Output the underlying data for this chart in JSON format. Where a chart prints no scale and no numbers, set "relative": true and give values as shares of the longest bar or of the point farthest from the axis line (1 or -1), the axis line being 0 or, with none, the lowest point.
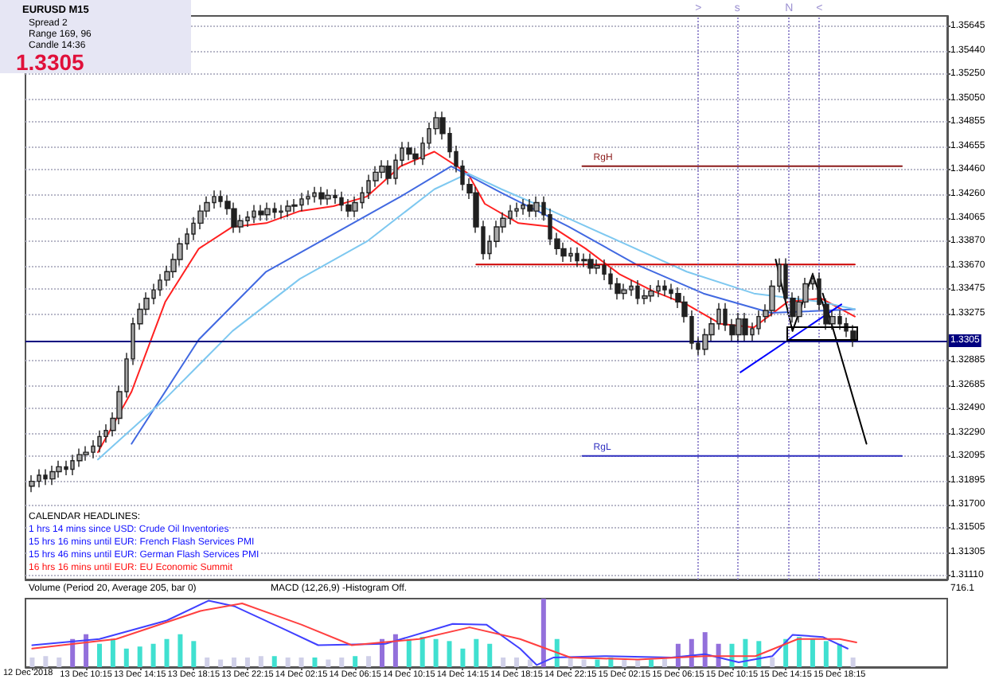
{
  "chart_data": [
    {
      "type": "candlestick",
      "x": [
        "2018-12-13T06:15",
        "2018-12-13T06:45",
        "2018-12-13T07:15",
        "2018-12-13T07:45",
        "2018-12-13T08:15",
        "2018-12-13T08:45",
        "2018-12-13T09:15",
        "2018-12-13T09:45",
        "2018-12-13T10:15",
        "2018-12-13T10:45",
        "2018-12-13T11:15",
        "2018-12-13T11:45",
        "2018-12-13T12:15",
        "2018-12-13T12:45",
        "2018-12-13T13:15",
        "2018-12-13T13:45",
        "2018-12-13T14:15",
        "2018-12-13T14:45",
        "2018-12-13T15:15",
        "2018-12-13T15:45",
        "2018-12-13T16:15",
        "2018-12-13T16:45",
        "2018-12-13T17:15",
        "2018-12-13T17:45",
        "2018-12-13T18:15",
        "2018-12-13T18:45",
        "2018-12-13T19:15",
        "2018-12-13T19:45",
        "2018-12-13T20:15",
        "2018-12-13T20:45",
        "2018-12-13T21:15",
        "2018-12-13T21:45",
        "2018-12-13T22:15",
        "2018-12-13T22:45",
        "2018-12-13T23:15",
        "2018-12-13T23:45",
        "2018-12-14T00:15",
        "2018-12-14T00:45",
        "2018-12-14T01:15",
        "2018-12-14T01:45",
        "2018-12-14T02:15",
        "2018-12-14T02:45",
        "2018-12-14T03:15",
        "2018-12-14T03:45",
        "2018-12-14T04:15",
        "2018-12-14T04:45",
        "2018-12-14T05:15",
        "2018-12-14T05:45",
        "2018-12-14T06:15",
        "2018-12-14T06:45",
        "2018-12-14T07:15",
        "2018-12-14T07:45",
        "2018-12-14T08:15",
        "2018-12-14T08:45",
        "2018-12-14T09:15",
        "2018-12-14T09:45",
        "2018-12-14T10:15",
        "2018-12-14T10:45",
        "2018-12-14T11:15",
        "2018-12-14T11:45",
        "2018-12-14T12:15",
        "2018-12-14T12:45",
        "2018-12-14T13:15",
        "2018-12-14T13:45",
        "2018-12-14T14:15",
        "2018-12-14T14:45",
        "2018-12-14T15:15",
        "2018-12-14T15:45",
        "2018-12-14T16:15",
        "2018-12-14T16:45",
        "2018-12-14T17:15",
        "2018-12-14T17:45",
        "2018-12-14T18:15",
        "2018-12-14T18:45",
        "2018-12-14T19:15",
        "2018-12-14T19:45",
        "2018-12-14T20:15",
        "2018-12-14T20:45",
        "2018-12-14T21:15",
        "2018-12-14T21:45",
        "2018-12-14T22:15",
        "2018-12-14T22:45",
        "2018-12-14T23:15",
        "2018-12-14T23:45",
        "2018-12-15T00:15",
        "2018-12-15T00:45",
        "2018-12-15T01:15",
        "2018-12-15T01:45",
        "2018-12-15T02:15",
        "2018-12-15T02:45",
        "2018-12-15T03:15",
        "2018-12-15T03:45",
        "2018-12-15T04:15",
        "2018-12-15T04:45",
        "2018-12-15T05:15",
        "2018-12-15T05:45",
        "2018-12-15T06:15",
        "2018-12-15T06:45",
        "2018-12-15T07:15",
        "2018-12-15T07:45",
        "2018-12-15T08:15",
        "2018-12-15T08:45",
        "2018-12-15T09:15",
        "2018-12-15T09:45",
        "2018-12-15T10:15",
        "2018-12-15T10:45",
        "2018-12-15T11:15",
        "2018-12-15T11:45",
        "2018-12-15T12:15",
        "2018-12-15T12:45",
        "2018-12-15T13:15",
        "2018-12-15T13:45",
        "2018-12-15T14:15",
        "2018-12-15T14:45",
        "2018-12-15T15:15",
        "2018-12-15T15:45",
        "2018-12-15T16:15",
        "2018-12-15T16:45",
        "2018-12-15T17:15",
        "2018-12-15T17:45",
        "2018-12-15T18:15",
        "2018-12-15T18:45",
        "2018-12-15T19:15"
      ],
      "ohlc": [
        [
          1.3185,
          1.3194,
          1.318,
          1.3189
        ],
        [
          1.3189,
          1.3199,
          1.3184,
          1.3194
        ],
        [
          1.3194,
          1.3199,
          1.3186,
          1.3191
        ],
        [
          1.3191,
          1.3202,
          1.3186,
          1.3197
        ],
        [
          1.3197,
          1.3206,
          1.3192,
          1.3201
        ],
        [
          1.3201,
          1.3206,
          1.3194,
          1.3199
        ],
        [
          1.3199,
          1.3211,
          1.3194,
          1.3206
        ],
        [
          1.3206,
          1.3216,
          1.3201,
          1.3211
        ],
        [
          1.3211,
          1.3218,
          1.3206,
          1.3213
        ],
        [
          1.3213,
          1.3223,
          1.3208,
          1.3218
        ],
        [
          1.3218,
          1.3231,
          1.3213,
          1.3226
        ],
        [
          1.3226,
          1.3236,
          1.3221,
          1.3231
        ],
        [
          1.3231,
          1.3246,
          1.3226,
          1.3241
        ],
        [
          1.3241,
          1.3268,
          1.3236,
          1.3263
        ],
        [
          1.3263,
          1.3295,
          1.3258,
          1.329
        ],
        [
          1.329,
          1.3324,
          1.3285,
          1.3319
        ],
        [
          1.3319,
          1.3336,
          1.3314,
          1.3331
        ],
        [
          1.3331,
          1.3345,
          1.3326,
          1.334
        ],
        [
          1.334,
          1.3352,
          1.3335,
          1.3347
        ],
        [
          1.3347,
          1.336,
          1.3342,
          1.3355
        ],
        [
          1.3355,
          1.3367,
          1.335,
          1.3362
        ],
        [
          1.3362,
          1.3377,
          1.3357,
          1.3372
        ],
        [
          1.3372,
          1.339,
          1.3367,
          1.3385
        ],
        [
          1.3385,
          1.3398,
          1.338,
          1.3393
        ],
        [
          1.3393,
          1.3407,
          1.3388,
          1.3402
        ],
        [
          1.3402,
          1.3417,
          1.3397,
          1.3412
        ],
        [
          1.3412,
          1.3424,
          1.3407,
          1.3419
        ],
        [
          1.3419,
          1.3429,
          1.3414,
          1.3424
        ],
        [
          1.3424,
          1.3429,
          1.3415,
          1.342
        ],
        [
          1.342,
          1.3425,
          1.3409,
          1.3414
        ],
        [
          1.3414,
          1.3419,
          1.3394,
          1.3399
        ],
        [
          1.3399,
          1.3409,
          1.3394,
          1.3404
        ],
        [
          1.3404,
          1.3412,
          1.3399,
          1.3407
        ],
        [
          1.3407,
          1.3417,
          1.3402,
          1.3412
        ],
        [
          1.3412,
          1.3417,
          1.3404,
          1.3409
        ],
        [
          1.3409,
          1.3419,
          1.3404,
          1.3414
        ],
        [
          1.3414,
          1.3419,
          1.3406,
          1.3411
        ],
        [
          1.3411,
          1.3417,
          1.3406,
          1.3412
        ],
        [
          1.3412,
          1.3421,
          1.3407,
          1.3416
        ],
        [
          1.3416,
          1.3422,
          1.3411,
          1.3417
        ],
        [
          1.3417,
          1.3427,
          1.3412,
          1.3422
        ],
        [
          1.3422,
          1.3429,
          1.3417,
          1.3424
        ],
        [
          1.3424,
          1.3432,
          1.3419,
          1.3427
        ],
        [
          1.3427,
          1.3432,
          1.3417,
          1.3422
        ],
        [
          1.3422,
          1.343,
          1.3417,
          1.3425
        ],
        [
          1.3425,
          1.343,
          1.3418,
          1.3423
        ],
        [
          1.3423,
          1.3428,
          1.3412,
          1.3417
        ],
        [
          1.3417,
          1.3422,
          1.3407,
          1.3412
        ],
        [
          1.3412,
          1.3424,
          1.3407,
          1.3419
        ],
        [
          1.3419,
          1.3432,
          1.3414,
          1.3427
        ],
        [
          1.3427,
          1.3442,
          1.3422,
          1.3437
        ],
        [
          1.3437,
          1.3449,
          1.3432,
          1.3444
        ],
        [
          1.3444,
          1.3454,
          1.3439,
          1.3449
        ],
        [
          1.3449,
          1.3454,
          1.3434,
          1.3439
        ],
        [
          1.3439,
          1.3459,
          1.3434,
          1.3454
        ],
        [
          1.3454,
          1.3469,
          1.3449,
          1.3464
        ],
        [
          1.3464,
          1.3469,
          1.3454,
          1.3459
        ],
        [
          1.3459,
          1.3464,
          1.345,
          1.3455
        ],
        [
          1.3455,
          1.3473,
          1.345,
          1.3468
        ],
        [
          1.3468,
          1.3485,
          1.3463,
          1.348
        ],
        [
          1.348,
          1.3494,
          1.3475,
          1.3489
        ],
        [
          1.3489,
          1.3494,
          1.3471,
          1.3476
        ],
        [
          1.3476,
          1.3481,
          1.3456,
          1.3461
        ],
        [
          1.3461,
          1.3466,
          1.3444,
          1.3449
        ],
        [
          1.3449,
          1.3454,
          1.3429,
          1.3434
        ],
        [
          1.3434,
          1.3439,
          1.3422,
          1.3427
        ],
        [
          1.3427,
          1.3432,
          1.3394,
          1.3399
        ],
        [
          1.3399,
          1.3404,
          1.3372,
          1.3377
        ],
        [
          1.3377,
          1.3392,
          1.3372,
          1.3387
        ],
        [
          1.3387,
          1.3404,
          1.3382,
          1.3399
        ],
        [
          1.3399,
          1.3411,
          1.3394,
          1.3406
        ],
        [
          1.3406,
          1.3417,
          1.3401,
          1.3412
        ],
        [
          1.3412,
          1.3419,
          1.3407,
          1.3414
        ],
        [
          1.3414,
          1.3422,
          1.3409,
          1.3417
        ],
        [
          1.3417,
          1.3422,
          1.3407,
          1.3412
        ],
        [
          1.3412,
          1.3424,
          1.3407,
          1.3419
        ],
        [
          1.3419,
          1.3424,
          1.3404,
          1.3409
        ],
        [
          1.3409,
          1.3414,
          1.3384,
          1.3389
        ],
        [
          1.3389,
          1.3394,
          1.3376,
          1.3381
        ],
        [
          1.3381,
          1.3386,
          1.337,
          1.3375
        ],
        [
          1.3375,
          1.3382,
          1.337,
          1.3377
        ],
        [
          1.3377,
          1.3382,
          1.3366,
          1.3371
        ],
        [
          1.3371,
          1.3377,
          1.3366,
          1.3372
        ],
        [
          1.3372,
          1.3377,
          1.336,
          1.3365
        ],
        [
          1.3365,
          1.3372,
          1.336,
          1.3367
        ],
        [
          1.3367,
          1.3372,
          1.3355,
          1.336
        ],
        [
          1.336,
          1.3365,
          1.3347,
          1.3352
        ],
        [
          1.3352,
          1.3357,
          1.3339,
          1.3344
        ],
        [
          1.3344,
          1.3352,
          1.3339,
          1.3347
        ],
        [
          1.3347,
          1.3355,
          1.3342,
          1.335
        ],
        [
          1.335,
          1.3355,
          1.3335,
          1.334
        ],
        [
          1.334,
          1.3347,
          1.3335,
          1.3342
        ],
        [
          1.3342,
          1.3351,
          1.3337,
          1.3346
        ],
        [
          1.3346,
          1.3355,
          1.3341,
          1.335
        ],
        [
          1.335,
          1.3355,
          1.3342,
          1.3347
        ],
        [
          1.3347,
          1.3352,
          1.3339,
          1.3344
        ],
        [
          1.3344,
          1.3349,
          1.3332,
          1.3337
        ],
        [
          1.3337,
          1.3342,
          1.332,
          1.3325
        ],
        [
          1.3325,
          1.333,
          1.3298,
          1.3303
        ],
        [
          1.3303,
          1.3308,
          1.3293,
          1.3298
        ],
        [
          1.3298,
          1.3315,
          1.3293,
          1.331
        ],
        [
          1.331,
          1.3324,
          1.3305,
          1.3319
        ],
        [
          1.3319,
          1.3336,
          1.3314,
          1.3331
        ],
        [
          1.3331,
          1.3336,
          1.3313,
          1.3318
        ],
        [
          1.3318,
          1.3323,
          1.3305,
          1.331
        ],
        [
          1.331,
          1.3328,
          1.3305,
          1.3323
        ],
        [
          1.3323,
          1.3328,
          1.3305,
          1.331
        ],
        [
          1.331,
          1.332,
          1.3305,
          1.3315
        ],
        [
          1.3315,
          1.333,
          1.331,
          1.3325
        ],
        [
          1.3325,
          1.3335,
          1.332,
          1.333
        ],
        [
          1.333,
          1.3355,
          1.3325,
          1.335
        ],
        [
          1.335,
          1.3373,
          1.3345,
          1.3368
        ],
        [
          1.3368,
          1.3373,
          1.3335,
          1.334
        ],
        [
          1.334,
          1.3345,
          1.332,
          1.3325
        ],
        [
          1.3325,
          1.3342,
          1.332,
          1.3337
        ],
        [
          1.3337,
          1.3357,
          1.3332,
          1.3352
        ],
        [
          1.3352,
          1.3361,
          1.3347,
          1.3356
        ],
        [
          1.3356,
          1.3361,
          1.333,
          1.3335
        ],
        [
          1.3335,
          1.334,
          1.3314,
          1.3319
        ],
        [
          1.3319,
          1.333,
          1.3314,
          1.3325
        ],
        [
          1.3325,
          1.333,
          1.3314,
          1.3319
        ],
        [
          1.3319,
          1.3324,
          1.3308,
          1.3313
        ],
        [
          1.3313,
          1.3318,
          1.33,
          1.3305
        ]
      ],
      "series": [
        {
          "type": "line",
          "color": "#ff2020",
          "x": [
            "2018-12-13T11:08",
            "2018-12-13T13:38",
            "2018-12-13T16:08",
            "2018-12-13T18:38",
            "2018-12-13T21:08",
            "2018-12-13T23:38",
            "2018-12-14T02:08",
            "2018-12-14T04:38",
            "2018-12-14T07:08",
            "2018-12-14T09:38",
            "2018-12-14T12:08",
            "2018-12-14T14:38",
            "2018-12-14T15:53",
            "2018-12-14T18:23",
            "2018-12-14T20:53",
            "2018-12-14T23:23",
            "2018-12-15T01:53",
            "2018-12-15T04:23",
            "2018-12-15T06:53",
            "2018-12-15T09:23",
            "2018-12-15T11:53",
            "2018-12-15T14:23",
            "2018-12-15T16:53",
            "2018-12-15T19:23"
          ],
          "values": [
            1.3213,
            1.3263,
            1.3337,
            1.3381,
            1.3399,
            1.3402,
            1.3412,
            1.3416,
            1.3424,
            1.3449,
            1.3461,
            1.3443,
            1.3418,
            1.3402,
            1.3399,
            1.3381,
            1.336,
            1.3346,
            1.3335,
            1.3319,
            1.3316,
            1.3337,
            1.334,
            1.3325
          ]
        },
        {
          "type": "line",
          "color": "#4169e1",
          "x": [
            "2018-12-13T13:38",
            "2018-12-13T18:38",
            "2018-12-13T23:38",
            "2018-12-14T04:38",
            "2018-12-14T09:38",
            "2018-12-14T13:23",
            "2018-12-14T17:08",
            "2018-12-14T22:08",
            "2018-12-15T03:08",
            "2018-12-15T08:08",
            "2018-12-15T13:08",
            "2018-12-15T19:23"
          ],
          "values": [
            1.322,
            1.3306,
            1.3362,
            1.3393,
            1.3424,
            1.3449,
            1.3427,
            1.3399,
            1.3368,
            1.3344,
            1.3328,
            1.3331
          ]
        },
        {
          "type": "line",
          "color": "#7ec8f0",
          "x": [
            "2018-12-13T11:08",
            "2018-12-13T16:08",
            "2018-12-13T21:08",
            "2018-12-14T02:08",
            "2018-12-14T07:08",
            "2018-12-14T12:08",
            "2018-12-14T14:38",
            "2018-12-14T17:08",
            "2018-12-14T20:53",
            "2018-12-15T01:53",
            "2018-12-15T06:53",
            "2018-12-15T11:53",
            "2018-12-15T16:53",
            "2018-12-15T19:23"
          ],
          "values": [
            1.3207,
            1.3257,
            1.3313,
            1.3356,
            1.3387,
            1.343,
            1.3443,
            1.343,
            1.3412,
            1.3387,
            1.3362,
            1.3344,
            1.3337,
            1.3331
          ]
        },
        {
          "type": "line",
          "name": "RgH",
          "color": "#8b1a1a",
          "x": [
            "2018-12-14T23:08",
            "2018-12-15T22:53"
          ],
          "values": [
            1.3449,
            1.3449
          ]
        },
        {
          "type": "line",
          "name": "RgL",
          "color": "#3030c0",
          "x": [
            "2018-12-14T23:08",
            "2018-12-15T22:53"
          ],
          "values": [
            1.321,
            1.321
          ]
        },
        {
          "type": "line",
          "color": "#cc0000",
          "x": [
            "2018-12-14T15:15",
            "2018-12-15T19:23"
          ],
          "values": [
            1.3368,
            1.3368
          ]
        },
        {
          "type": "line",
          "color": "#0000ff",
          "x": [
            "2018-12-15T10:53",
            "2018-12-15T18:23"
          ],
          "values": [
            1.3279,
            1.3335
          ]
        },
        {
          "type": "line",
          "color": "#000000",
          "x": [
            "2018-12-15T13:30",
            "2018-12-15T14:45",
            "2018-12-15T16:15",
            "2018-12-15T17:30"
          ],
          "values": [
            1.3372,
            1.3313,
            1.336,
            1.3319
          ]
        },
        {
          "type": "line",
          "color": "#000000",
          "x": [
            "2018-12-15T17:00",
            "2018-12-15T20:15"
          ],
          "values": [
            1.3344,
            1.322
          ]
        }
      ],
      "ref_lines": [
        {
          "axis": "y",
          "value": 1.3305,
          "label": "1.3305",
          "color": "#000080"
        },
        {
          "axis": "x",
          "value": "2018-12-15T07:45",
          "label": ">",
          "color": "#9a8fd0",
          "line_style": "dotted"
        },
        {
          "axis": "x",
          "value": "2018-12-15T10:39",
          "label": "s",
          "color": "#9a8fd0",
          "line_style": "dotted"
        },
        {
          "axis": "x",
          "value": "2018-12-15T14:30",
          "label": "N",
          "color": "#9a8fd0",
          "line_style": "dotted"
        },
        {
          "axis": "x",
          "value": "2018-12-15T16:45",
          "label": "<",
          "color": "#9a8fd0",
          "line_style": "dotted"
        }
      ],
      "xlim": [
        "2018-12-13T05:45",
        "2018-12-16T02:15"
      ],
      "ylim": [
        1.3108,
        1.3573
      ],
      "yticks": [
        {
          "value": 1.35645,
          "label": "1.35645"
        },
        {
          "value": 1.3544,
          "label": "1.35440"
        },
        {
          "value": 1.3525,
          "label": "1.35250"
        },
        {
          "value": 1.3505,
          "label": "1.35050"
        },
        {
          "value": 1.34855,
          "label": "1.34855"
        },
        {
          "value": 1.34655,
          "label": "1.34655"
        },
        {
          "value": 1.3446,
          "label": "1.34460"
        },
        {
          "value": 1.3426,
          "label": "1.34260"
        },
        {
          "value": 1.34065,
          "label": "1.34065"
        },
        {
          "value": 1.3387,
          "label": "1.33870"
        },
        {
          "value": 1.3367,
          "label": "1.33670"
        },
        {
          "value": 1.33475,
          "label": "1.33475"
        },
        {
          "value": 1.33275,
          "label": "1.33275"
        },
        {
          "value": 1.32885,
          "label": "1.32885"
        },
        {
          "value": 1.32685,
          "label": "1.32685"
        },
        {
          "value": 1.3249,
          "label": "1.32490"
        },
        {
          "value": 1.3229,
          "label": "1.32290"
        },
        {
          "value": 1.32095,
          "label": "1.32095"
        },
        {
          "value": 1.31895,
          "label": "1.31895"
        },
        {
          "value": 1.317,
          "label": "1.31700"
        },
        {
          "value": 1.31505,
          "label": "1.31505"
        },
        {
          "value": 1.31305,
          "label": "1.31305"
        },
        {
          "value": 1.3111,
          "label": "1.31110"
        }
      ],
      "grid": "y",
      "tick_labels": "y",
      "annotations": [
        "EURUSD  M15",
        "Spread  2",
        "Range  169, 96",
        "Candle  14:36",
        "1.3305",
        "CALENDAR HEADLINES:",
        "1 hrs 14 mins since USD: Crude Oil Inventories",
        "15 hrs 16 mins until EUR: French Flash Services PMI",
        "15 hrs 46 mins until EUR: German Flash Services PMI",
        "16 hrs 16 mins until EUR: EU Economic Summit"
      ]
    },
    {
      "type": "bar",
      "relative": true,
      "x": [
        "2018-12-13T06:15",
        "2018-12-13T07:15",
        "2018-12-13T08:15",
        "2018-12-13T09:15",
        "2018-12-13T10:15",
        "2018-12-13T11:15",
        "2018-12-13T12:15",
        "2018-12-13T13:15",
        "2018-12-13T14:15",
        "2018-12-13T15:15",
        "2018-12-13T16:15",
        "2018-12-13T17:15",
        "2018-12-13T18:15",
        "2018-12-13T19:15",
        "2018-12-13T20:15",
        "2018-12-13T21:15",
        "2018-12-13T22:15",
        "2018-12-13T23:15",
        "2018-12-14T00:15",
        "2018-12-14T01:15",
        "2018-12-14T02:15",
        "2018-12-14T03:15",
        "2018-12-14T04:15",
        "2018-12-14T05:15",
        "2018-12-14T06:15",
        "2018-12-14T07:15",
        "2018-12-14T08:15",
        "2018-12-14T09:15",
        "2018-12-14T10:15",
        "2018-12-14T11:15",
        "2018-12-14T12:15",
        "2018-12-14T13:15",
        "2018-12-14T14:15",
        "2018-12-14T15:15",
        "2018-12-14T16:15",
        "2018-12-14T17:15",
        "2018-12-14T18:15",
        "2018-12-14T19:15",
        "2018-12-14T20:15",
        "2018-12-14T21:15",
        "2018-12-14T22:15",
        "2018-12-14T23:15",
        "2018-12-15T00:15",
        "2018-12-15T01:15",
        "2018-12-15T02:15",
        "2018-12-15T03:15",
        "2018-12-15T04:15",
        "2018-12-15T05:15",
        "2018-12-15T06:15",
        "2018-12-15T07:15",
        "2018-12-15T08:15",
        "2018-12-15T09:15",
        "2018-12-15T10:15",
        "2018-12-15T11:15",
        "2018-12-15T12:15",
        "2018-12-15T13:15",
        "2018-12-15T14:15",
        "2018-12-15T15:15",
        "2018-12-15T16:15",
        "2018-12-15T17:15",
        "2018-12-15T18:15",
        "2018-12-15T19:15"
      ],
      "values": [
        0.14,
        0.16,
        0.14,
        0.41,
        0.48,
        0.34,
        0.41,
        0.27,
        0.3,
        0.34,
        0.41,
        0.48,
        0.38,
        0.14,
        0.11,
        0.14,
        0.14,
        0.16,
        0.16,
        0.14,
        0.14,
        0.14,
        0.11,
        0.14,
        0.16,
        0.16,
        0.41,
        0.48,
        0.41,
        0.44,
        0.41,
        0.38,
        0.27,
        0.41,
        0.34,
        0.14,
        0.14,
        0.11,
        1,
        0.41,
        0.14,
        0.11,
        0.11,
        0.14,
        0.11,
        0.11,
        0.11,
        0.14,
        0.34,
        0.41,
        0.51,
        0.34,
        0.34,
        0.41,
        0.38,
        0.14,
        0.41,
        0.44,
        0.41,
        0.38,
        0.34,
        0.14
      ],
      "colors": [
        "#d0d0e8",
        "#d0d0e8",
        "#d0d0e8",
        "#9370db",
        "#9370db",
        "#40e0d0",
        "#40e0d0",
        "#40e0d0",
        "#40e0d0",
        "#40e0d0",
        "#40e0d0",
        "#40e0d0",
        "#40e0d0",
        "#d0d0e8",
        "#d0d0e8",
        "#d0d0e8",
        "#d0d0e8",
        "#d0d0e8",
        "#40e0d0",
        "#d0d0e8",
        "#d0d0e8",
        "#40e0d0",
        "#d0d0e8",
        "#d0d0e8",
        "#40e0d0",
        "#d0d0e8",
        "#9370db",
        "#9370db",
        "#40e0d0",
        "#40e0d0",
        "#40e0d0",
        "#40e0d0",
        "#40e0d0",
        "#40e0d0",
        "#40e0d0",
        "#d0d0e8",
        "#d0d0e8",
        "#d0d0e8",
        "#9370db",
        "#40e0d0",
        "#d0d0e8",
        "#d0d0e8",
        "#40e0d0",
        "#40e0d0",
        "#d0d0e8",
        "#d0d0e8",
        "#40e0d0",
        "#d0d0e8",
        "#9370db",
        "#9370db",
        "#9370db",
        "#9370db",
        "#40e0d0",
        "#40e0d0",
        "#40e0d0",
        "#d0d0e8",
        "#40e0d0",
        "#40e0d0",
        "#40e0d0",
        "#40e0d0",
        "#40e0d0",
        "#d0d0e8"
      ],
      "series": [
        {
          "type": "line",
          "color": "#4040ff",
          "x": [
            "2018-12-13T06:15",
            "2018-12-13T11:15",
            "2018-12-13T16:15",
            "2018-12-13T19:21",
            "2018-12-13T21:15",
            "2018-12-14T01:00",
            "2018-12-14T03:30",
            "2018-12-14T08:30",
            "2018-12-14T13:30",
            "2018-12-14T16:00",
            "2018-12-14T18:30",
            "2018-12-14T19:45",
            "2018-12-14T21:00",
            "2018-12-15T00:45",
            "2018-12-15T05:45",
            "2018-12-15T08:15",
            "2018-12-15T10:45",
            "2018-12-15T13:15",
            "2018-12-15T14:45",
            "2018-12-15T17:00",
            "2018-12-15T18:51"
          ],
          "values": [
            0.32,
            0.41,
            0.68,
            0.97,
            0.89,
            0.55,
            0.32,
            0.34,
            0.63,
            0.62,
            0.27,
            0.03,
            0.14,
            0.16,
            0.14,
            0.19,
            0.07,
            0.16,
            0.47,
            0.44,
            0.27
          ]
        },
        {
          "type": "line",
          "color": "#ff4040",
          "x": [
            "2018-12-13T06:15",
            "2018-12-13T12:30",
            "2018-12-13T18:45",
            "2018-12-13T21:51",
            "2018-12-14T02:15",
            "2018-12-14T06:00",
            "2018-12-14T11:00",
            "2018-12-14T14:45",
            "2018-12-14T18:30",
            "2018-12-14T22:15",
            "2018-12-15T03:15",
            "2018-12-15T08:15",
            "2018-12-15T12:00",
            "2018-12-15T15:09",
            "2018-12-15T18:15",
            "2018-12-15T19:30"
          ],
          "values": [
            0.27,
            0.41,
            0.82,
            0.93,
            0.62,
            0.32,
            0.41,
            0.58,
            0.41,
            0.14,
            0.11,
            0.16,
            0.16,
            0.41,
            0.41,
            0.36
          ]
        }
      ],
      "xlim": [
        "2018-12-13T05:45",
        "2018-12-16T02:15"
      ],
      "xticks": [
        {
          "value": "2018-12-13T06:15",
          "label": null
        },
        {
          "value": "2018-12-13T10:15",
          "label": "13 Dec 10:15"
        },
        {
          "value": "2018-12-13T14:15",
          "label": "13 Dec 14:15"
        },
        {
          "value": "2018-12-13T18:15",
          "label": "13 Dec 18:15"
        },
        {
          "value": "2018-12-13T22:15",
          "label": "13 Dec 22:15"
        },
        {
          "value": "2018-12-14T02:15",
          "label": "14 Dec 02:15"
        },
        {
          "value": "2018-12-14T06:15",
          "label": "14 Dec 06:15"
        },
        {
          "value": "2018-12-14T10:15",
          "label": "14 Dec 10:15"
        },
        {
          "value": "2018-12-14T14:15",
          "label": "14 Dec 14:15"
        },
        {
          "value": "2018-12-14T18:15",
          "label": "14 Dec 18:15"
        },
        {
          "value": "2018-12-14T22:15",
          "label": "14 Dec 22:15"
        },
        {
          "value": "2018-12-15T02:15",
          "label": "15 Dec 02:15"
        },
        {
          "value": "2018-12-15T06:15",
          "label": "15 Dec 06:15"
        },
        {
          "value": "2018-12-15T10:15",
          "label": "15 Dec 10:15"
        },
        {
          "value": "2018-12-15T14:15",
          "label": "15 Dec 14:15"
        },
        {
          "value": "2018-12-15T18:15",
          "label": "15 Dec 18:15"
        }
      ],
      "tick_labels": "x",
      "annotations": [
        "Volume (Period 20, Average 205, bar 0)",
        "MACD (12,26,9) -Histogram Off.",
        "716.1",
        "12 Dec 2018"
      ]
    }
  ]
}
